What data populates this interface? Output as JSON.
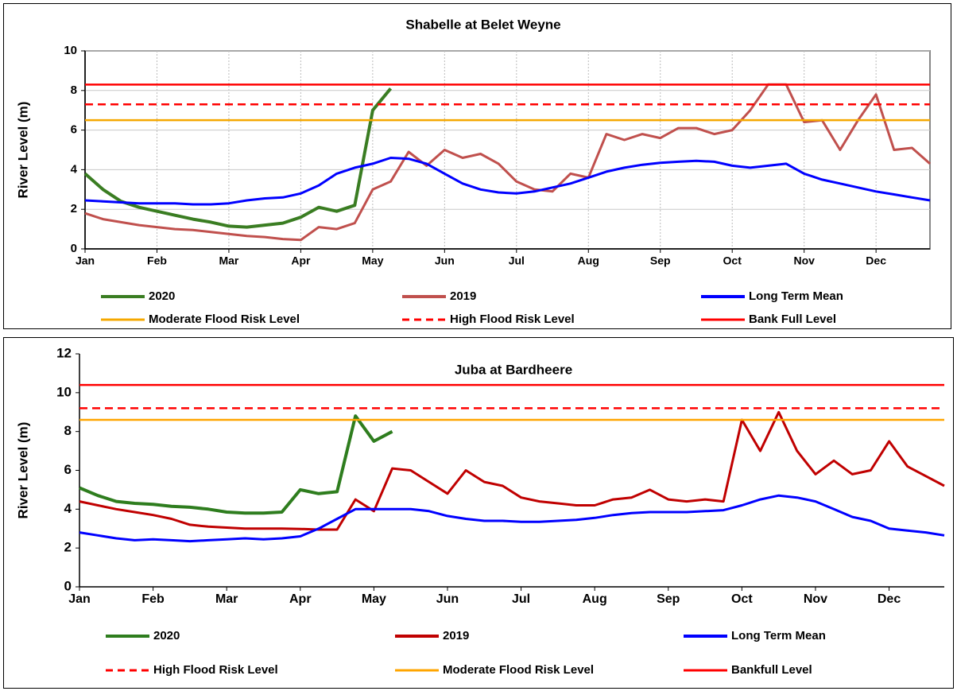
{
  "chart_data": [
    {
      "type": "line",
      "title": "Shabelle at Belet Weyne",
      "y_label": "River Level (m)",
      "categories": [
        "Jan",
        null,
        null,
        null,
        "Feb",
        null,
        null,
        null,
        "Mar",
        null,
        null,
        null,
        "Apr",
        null,
        null,
        null,
        "May",
        null,
        null,
        null,
        "Jun",
        null,
        null,
        null,
        "Jul",
        null,
        null,
        null,
        "Aug",
        null,
        null,
        null,
        "Sep",
        null,
        null,
        null,
        "Oct",
        null,
        null,
        null,
        "Nov",
        null,
        null,
        null,
        "Dec",
        null,
        null,
        null
      ],
      "ylim": [
        0,
        10
      ],
      "yticks": [
        0,
        2,
        4,
        6,
        8,
        10
      ],
      "grid": true,
      "series": [
        {
          "name": "2020",
          "color": "#3a7d22",
          "values": [
            3.8,
            3.0,
            2.4,
            2.1,
            1.9,
            1.7,
            1.5,
            1.35,
            1.15,
            1.1,
            1.2,
            1.3,
            1.6,
            2.1,
            1.9,
            2.2,
            7.0,
            8.1,
            null,
            null,
            null,
            null,
            null,
            null,
            null,
            null,
            null,
            null,
            null,
            null,
            null,
            null,
            null,
            null,
            null,
            null,
            null,
            null,
            null,
            null,
            null,
            null,
            null,
            null,
            null,
            null,
            null,
            null
          ]
        },
        {
          "name": "2019",
          "color": "#c0504d",
          "values": [
            1.8,
            1.5,
            1.35,
            1.2,
            1.1,
            1.0,
            0.95,
            0.85,
            0.75,
            0.65,
            0.6,
            0.5,
            0.45,
            1.1,
            1.0,
            1.3,
            3.0,
            3.4,
            4.9,
            4.2,
            5.0,
            4.6,
            4.8,
            4.3,
            3.4,
            3.0,
            2.9,
            3.8,
            3.6,
            5.8,
            5.5,
            5.8,
            5.6,
            6.1,
            6.1,
            5.8,
            6.0,
            7.0,
            8.3,
            8.3,
            6.4,
            6.5,
            5.0,
            6.5,
            7.8,
            5.0,
            5.1,
            4.3
          ]
        },
        {
          "name": "Long Term Mean",
          "color": "#0000ff",
          "values": [
            2.45,
            2.4,
            2.35,
            2.3,
            2.3,
            2.3,
            2.25,
            2.25,
            2.3,
            2.45,
            2.55,
            2.6,
            2.8,
            3.2,
            3.8,
            4.1,
            4.3,
            4.6,
            4.55,
            4.3,
            3.8,
            3.3,
            3.0,
            2.85,
            2.8,
            2.9,
            3.1,
            3.3,
            3.6,
            3.9,
            4.1,
            4.25,
            4.35,
            4.4,
            4.45,
            4.4,
            4.2,
            4.1,
            4.2,
            4.3,
            3.8,
            3.5,
            3.3,
            3.1,
            2.9,
            2.75,
            2.6,
            2.45
          ]
        },
        {
          "name": "Moderate Flood Risk Level",
          "color": "#f5a800",
          "value": 6.5
        },
        {
          "name": "High Flood Risk Level",
          "color": "#ff0000",
          "value": 7.3,
          "dashed": true
        },
        {
          "name": "Bank Full Level",
          "color": "#ff0000",
          "value": 8.3
        }
      ]
    },
    {
      "type": "line",
      "title": "Juba at Bardheere",
      "y_label": "River Level (m)",
      "categories": [
        "Jan",
        null,
        null,
        null,
        "Feb",
        null,
        null,
        null,
        "Mar",
        null,
        null,
        null,
        "Apr",
        null,
        null,
        null,
        "May",
        null,
        null,
        null,
        "Jun",
        null,
        null,
        null,
        "Jul",
        null,
        null,
        null,
        "Aug",
        null,
        null,
        null,
        "Sep",
        null,
        null,
        null,
        "Oct",
        null,
        null,
        null,
        "Nov",
        null,
        null,
        null,
        "Dec",
        null,
        null,
        null
      ],
      "ylim": [
        0,
        12
      ],
      "yticks": [
        0,
        2,
        4,
        6,
        8,
        10,
        12
      ],
      "grid": false,
      "series": [
        {
          "name": "2020",
          "color": "#2e7d1e",
          "values": [
            5.1,
            4.7,
            4.4,
            4.3,
            4.25,
            4.15,
            4.1,
            4.0,
            3.85,
            3.8,
            3.8,
            3.85,
            5.0,
            4.8,
            4.9,
            8.8,
            7.5,
            8.0,
            null,
            null,
            null,
            null,
            null,
            null,
            null,
            null,
            null,
            null,
            null,
            null,
            null,
            null,
            null,
            null,
            null,
            null,
            null,
            null,
            null,
            null,
            null,
            null,
            null,
            null,
            null,
            null,
            null,
            null
          ]
        },
        {
          "name": "2019",
          "color": "#c00000",
          "values": [
            4.4,
            4.2,
            4.0,
            3.85,
            3.7,
            3.5,
            3.2,
            3.1,
            3.05,
            3.0,
            3.0,
            3.0,
            2.98,
            2.95,
            2.95,
            4.5,
            3.9,
            6.1,
            6.0,
            5.4,
            4.8,
            6.0,
            5.4,
            5.2,
            4.6,
            4.4,
            4.3,
            4.2,
            4.2,
            4.5,
            4.6,
            5.0,
            4.5,
            4.4,
            4.5,
            4.4,
            8.6,
            7.0,
            9.0,
            7.0,
            5.8,
            6.5,
            5.8,
            6.0,
            7.5,
            6.2,
            5.7,
            5.2
          ]
        },
        {
          "name": "Long Term Mean",
          "color": "#0000ff",
          "values": [
            2.8,
            2.65,
            2.5,
            2.4,
            2.45,
            2.4,
            2.35,
            2.4,
            2.45,
            2.5,
            2.45,
            2.5,
            2.6,
            3.0,
            3.5,
            4.0,
            4.0,
            4.0,
            4.0,
            3.9,
            3.65,
            3.5,
            3.4,
            3.4,
            3.35,
            3.35,
            3.4,
            3.45,
            3.55,
            3.7,
            3.8,
            3.85,
            3.85,
            3.85,
            3.9,
            3.95,
            4.2,
            4.5,
            4.7,
            4.6,
            4.4,
            4.0,
            3.6,
            3.4,
            3.0,
            2.9,
            2.8,
            2.65
          ]
        },
        {
          "name": "High Flood Risk Level",
          "color": "#ff0000",
          "value": 9.2,
          "dashed": true
        },
        {
          "name": "Moderate Flood Risk Level",
          "color": "#ffa500",
          "value": 8.6
        },
        {
          "name": "Bankfull Level",
          "color": "#ff0000",
          "value": 10.4
        }
      ]
    }
  ]
}
